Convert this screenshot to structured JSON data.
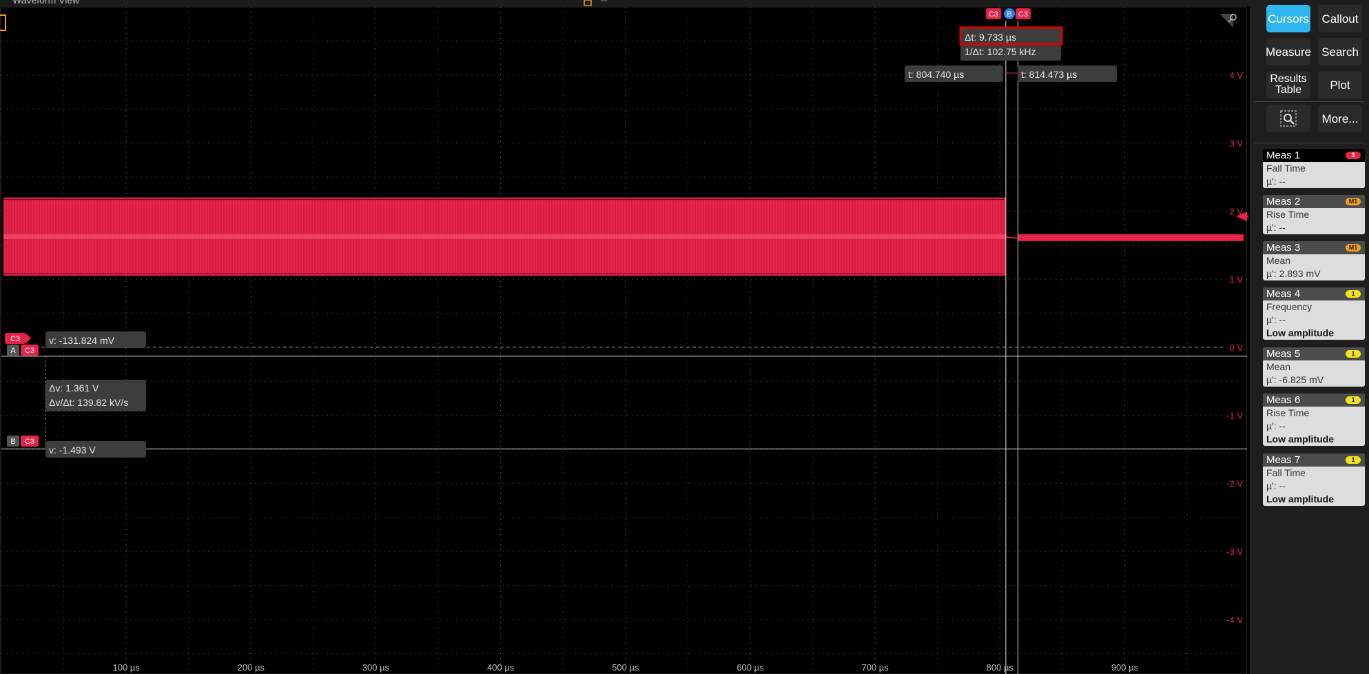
{
  "waveform_view": {
    "title": "Waveform View",
    "y_axis": [
      {
        "value": 4,
        "label": "4 V"
      },
      {
        "value": 3,
        "label": "3 V"
      },
      {
        "value": 2,
        "label": "2 V"
      },
      {
        "value": 1,
        "label": "1 V"
      },
      {
        "value": 0,
        "label": "0 V"
      },
      {
        "value": -1,
        "label": "-1 V"
      },
      {
        "value": -2,
        "label": "-2 V"
      },
      {
        "value": -3,
        "label": "-3 V"
      },
      {
        "value": -4,
        "label": "-4 V"
      }
    ],
    "x_axis": [
      {
        "value": 100,
        "label": "100 µs"
      },
      {
        "value": 200,
        "label": "200 µs"
      },
      {
        "value": 300,
        "label": "300 µs"
      },
      {
        "value": 400,
        "label": "400 µs"
      },
      {
        "value": 500,
        "label": "500 µs"
      },
      {
        "value": 600,
        "label": "600 µs"
      },
      {
        "value": 700,
        "label": "700 µs"
      },
      {
        "value": 800,
        "label": "800 µs"
      },
      {
        "value": 900,
        "label": "900 µs"
      }
    ],
    "x_range_us": [
      0,
      998
    ],
    "y_range_v": [
      -4.8,
      5
    ],
    "channel": {
      "name": "C3",
      "color": "#e8234a"
    },
    "signal": {
      "burst_end_us": 804.74,
      "burst_high_v": 2.2,
      "burst_low_v": 1.05,
      "burst_center_v": 1.62,
      "quiet_start_us": 814.473,
      "quiet_high_v": 1.66,
      "quiet_low_v": 1.56
    },
    "cursors": {
      "a": {
        "label": "A",
        "time_us": 804.74,
        "time_text": "t: 804.740 µs",
        "volt": -0.131824,
        "volt_text": "v: -131.824 mV"
      },
      "b": {
        "label": "B",
        "time_us": 814.473,
        "time_text": "t: 814.473 µs",
        "volt": -1.493,
        "volt_text": "v: -1.493 V"
      },
      "delta_t": "Δt: 9.733 µs",
      "inv_delta_t": "1/Δt: 102.75 kHz",
      "delta_v": "Δv: 1.361 V",
      "dv_dt": "Δv/Δt: 139.82 kV/s",
      "tag_c3": "C3",
      "tag_b": "B"
    }
  },
  "right_panel": {
    "buttons": {
      "cursors": "Cursors",
      "callout": "Callout",
      "measure": "Measure",
      "search": "Search",
      "results_line1": "Results",
      "results_line2": "Table",
      "plot": "Plot",
      "more": "More..."
    },
    "measurements": [
      {
        "name": "Meas 1",
        "badge": "3",
        "badge_color": "#e8234a",
        "type": "Fall Time",
        "value": "µ': --",
        "note": ""
      },
      {
        "name": "Meas 2",
        "badge": "M1",
        "badge_color": "#f39c1f",
        "type": "Rise Time",
        "value": "µ': --",
        "note": ""
      },
      {
        "name": "Meas 3",
        "badge": "M1",
        "badge_color": "#f39c1f",
        "type": "Mean",
        "value": "µ': 2.893 mV",
        "note": ""
      },
      {
        "name": "Meas 4",
        "badge": "1",
        "badge_color": "#f4e21b",
        "type": "Frequency",
        "value": "µ': --",
        "note": "Low amplitude"
      },
      {
        "name": "Meas 5",
        "badge": "1",
        "badge_color": "#f4e21b",
        "type": "Mean",
        "value": "µ': -6.825 mV",
        "note": ""
      },
      {
        "name": "Meas 6",
        "badge": "1",
        "badge_color": "#f4e21b",
        "type": "Rise Time",
        "value": "µ': --",
        "note": "Low amplitude"
      },
      {
        "name": "Meas 7",
        "badge": "1",
        "badge_color": "#f4e21b",
        "type": "Fall Time",
        "value": "µ': --",
        "note": "Low amplitude"
      }
    ]
  }
}
